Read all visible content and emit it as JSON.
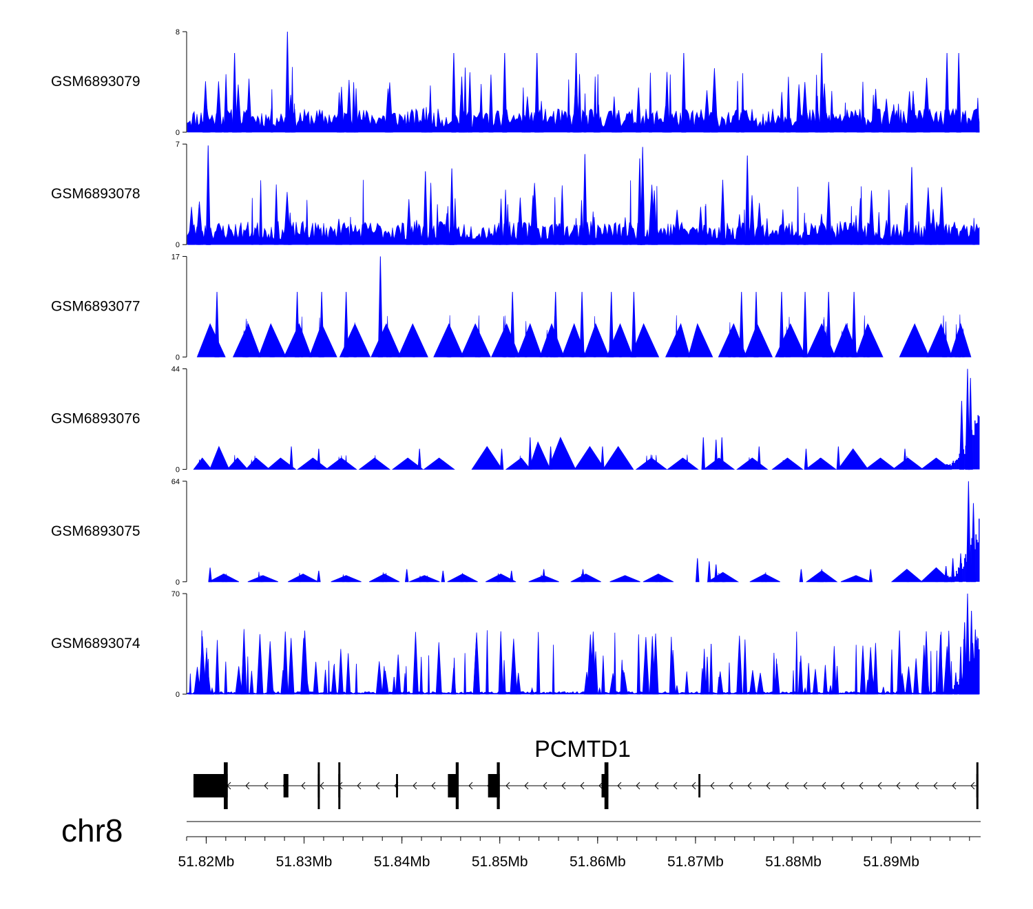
{
  "chart_data": {
    "type": "area",
    "chromosome": "chr8",
    "region_mb": [
      51.818,
      51.899
    ],
    "color": "#0000ff",
    "tracks": [
      {
        "name": "GSM6893079",
        "ymax": "8",
        "ymin": "0",
        "max_value": 8,
        "baseline": 1.5,
        "peak_count": 70,
        "dense": true,
        "seed": 11,
        "peaks": [
          [
            51.8229,
            6.3
          ],
          [
            51.8283,
            8.0
          ],
          [
            51.8453,
            6.3
          ],
          [
            51.8505,
            6.3
          ],
          [
            51.8538,
            6.3
          ],
          [
            51.8578,
            6.3
          ],
          [
            51.8688,
            6.3
          ],
          [
            51.8829,
            6.3
          ],
          [
            51.8957,
            6.3
          ],
          [
            51.8969,
            6.3
          ]
        ]
      },
      {
        "name": "GSM6893078",
        "ymax": "7",
        "ymin": "0",
        "max_value": 7,
        "baseline": 1.3,
        "peak_count": 75,
        "dense": true,
        "seed": 23,
        "peaks": [
          [
            51.8202,
            6.9
          ],
          [
            51.8424,
            5.1
          ],
          [
            51.8451,
            5.3
          ],
          [
            51.8587,
            6.3
          ],
          [
            51.8643,
            6.0
          ],
          [
            51.8646,
            6.8
          ],
          [
            51.8753,
            6.2
          ],
          [
            51.8921,
            5.4
          ]
        ]
      },
      {
        "name": "GSM6893077",
        "ymax": "17",
        "ymin": "0",
        "max_value": 17,
        "baseline": 0,
        "peak_count": 0,
        "dense": false,
        "seed": 37,
        "triangles": [
          [
            51.8204,
            5.6
          ],
          [
            51.8243,
            5.6
          ],
          [
            51.8266,
            5.6
          ],
          [
            51.8295,
            5.6
          ],
          [
            51.8318,
            5.6
          ],
          [
            51.8352,
            5.6
          ],
          [
            51.8384,
            5.6
          ],
          [
            51.8411,
            5.6
          ],
          [
            51.8448,
            5.6
          ],
          [
            51.8475,
            5.6
          ],
          [
            51.8507,
            5.6
          ],
          [
            51.8531,
            5.6
          ],
          [
            51.8553,
            5.6
          ],
          [
            51.8576,
            5.6
          ],
          [
            51.8598,
            5.6
          ],
          [
            51.8623,
            5.6
          ],
          [
            51.8647,
            5.6
          ],
          [
            51.8685,
            5.6
          ],
          [
            51.8702,
            5.6
          ],
          [
            51.8739,
            5.6
          ],
          [
            51.8763,
            5.6
          ],
          [
            51.8797,
            5.6
          ],
          [
            51.8829,
            5.6
          ],
          [
            51.8854,
            5.6
          ],
          [
            51.8876,
            5.6
          ],
          [
            51.8924,
            5.6
          ],
          [
            51.8951,
            5.6
          ],
          [
            51.8971,
            5.6
          ]
        ],
        "peaks": [
          [
            51.8211,
            11.0
          ],
          [
            51.8293,
            11.0
          ],
          [
            51.8318,
            11.0
          ],
          [
            51.8343,
            11.0
          ],
          [
            51.8378,
            17.0
          ],
          [
            51.8513,
            11.0
          ],
          [
            51.8557,
            11.0
          ],
          [
            51.8584,
            11.0
          ],
          [
            51.8614,
            11.0
          ],
          [
            51.8637,
            11.0
          ],
          [
            51.8747,
            11.0
          ],
          [
            51.8762,
            11.0
          ],
          [
            51.8788,
            11.0
          ],
          [
            51.8812,
            11.0
          ],
          [
            51.8836,
            11.0
          ],
          [
            51.8862,
            11.0
          ]
        ]
      },
      {
        "name": "GSM6893076",
        "ymax": "44",
        "ymin": "0",
        "max_value": 44,
        "baseline": 0,
        "peak_count": 0,
        "dense": false,
        "seed": 41,
        "triangles": [
          [
            51.8196,
            5
          ],
          [
            51.8213,
            10
          ],
          [
            51.8232,
            5
          ],
          [
            51.8251,
            5
          ],
          [
            51.8276,
            5
          ],
          [
            51.8309,
            5
          ],
          [
            51.8338,
            5
          ],
          [
            51.8372,
            5
          ],
          [
            51.8406,
            5
          ],
          [
            51.8438,
            5
          ],
          [
            51.8487,
            10
          ],
          [
            51.8522,
            5
          ],
          [
            51.8539,
            12
          ],
          [
            51.8562,
            14
          ],
          [
            51.8592,
            10
          ],
          [
            51.8621,
            10
          ],
          [
            51.8655,
            5
          ],
          [
            51.8687,
            5
          ],
          [
            51.8724,
            5
          ],
          [
            51.8758,
            5
          ],
          [
            51.8794,
            5
          ],
          [
            51.8828,
            5
          ],
          [
            51.8861,
            9
          ],
          [
            51.8889,
            5
          ],
          [
            51.8917,
            5
          ],
          [
            51.8946,
            5
          ]
        ],
        "peaks": [
          [
            51.8287,
            10
          ],
          [
            51.8315,
            9
          ],
          [
            51.8418,
            9
          ],
          [
            51.8502,
            9
          ],
          [
            51.8531,
            14
          ],
          [
            51.8552,
            10
          ],
          [
            51.8605,
            10
          ],
          [
            51.8708,
            14
          ],
          [
            51.8721,
            13
          ],
          [
            51.8727,
            14
          ],
          [
            51.8765,
            10
          ],
          [
            51.8813,
            9
          ],
          [
            51.8846,
            10
          ],
          [
            51.8914,
            9
          ],
          [
            51.8978,
            44
          ],
          [
            51.8981,
            40
          ],
          [
            51.8972,
            30
          ]
        ]
      },
      {
        "name": "GSM6893075",
        "ymax": "64",
        "ymin": "0",
        "max_value": 64,
        "baseline": 0,
        "peak_count": 0,
        "dense": false,
        "seed": 53,
        "triangles": [
          [
            51.8218,
            5
          ],
          [
            51.8258,
            4
          ],
          [
            51.8299,
            5
          ],
          [
            51.8343,
            4
          ],
          [
            51.8382,
            5
          ],
          [
            51.8423,
            4
          ],
          [
            51.8462,
            5
          ],
          [
            51.8501,
            5
          ],
          [
            51.8545,
            4
          ],
          [
            51.8588,
            5
          ],
          [
            51.8628,
            4
          ],
          [
            51.8662,
            5
          ],
          [
            51.8728,
            6
          ],
          [
            51.8771,
            5
          ],
          [
            51.8829,
            7
          ],
          [
            51.8864,
            4
          ],
          [
            51.8916,
            8
          ],
          [
            51.8946,
            9
          ]
        ],
        "peaks": [
          [
            51.8204,
            9
          ],
          [
            51.8315,
            7
          ],
          [
            51.8405,
            8
          ],
          [
            51.8442,
            7
          ],
          [
            51.8512,
            7
          ],
          [
            51.8545,
            8
          ],
          [
            51.8585,
            8
          ],
          [
            51.8702,
            15
          ],
          [
            51.8714,
            13
          ],
          [
            51.8721,
            11
          ],
          [
            51.8808,
            8
          ],
          [
            51.8829,
            8
          ],
          [
            51.8879,
            8
          ],
          [
            51.8956,
            10
          ],
          [
            51.8971,
            18
          ],
          [
            51.8979,
            64
          ],
          [
            51.8984,
            50
          ],
          [
            51.8963,
            15
          ]
        ]
      },
      {
        "name": "GSM6893074",
        "ymax": "70",
        "ymin": "0",
        "max_value": 70,
        "baseline": 1.5,
        "peak_count": 120,
        "dense": true,
        "seed": 67,
        "peaks": [
          [
            51.8206,
            4
          ],
          [
            51.8268,
            4
          ],
          [
            51.8336,
            5
          ],
          [
            51.8392,
            12
          ],
          [
            51.8478,
            5
          ],
          [
            51.8533,
            4
          ],
          [
            51.8602,
            4
          ],
          [
            51.8681,
            6
          ],
          [
            51.8712,
            26
          ],
          [
            51.8707,
            18
          ],
          [
            51.8716,
            35
          ],
          [
            51.8724,
            12
          ],
          [
            51.8812,
            4
          ],
          [
            51.8838,
            6
          ],
          [
            51.8876,
            10
          ],
          [
            51.8892,
            5
          ],
          [
            51.8937,
            6
          ],
          [
            51.8966,
            15
          ],
          [
            51.8971,
            33
          ],
          [
            51.8975,
            50
          ],
          [
            51.8978,
            70
          ],
          [
            51.8982,
            58
          ],
          [
            51.8986,
            45
          ]
        ]
      }
    ],
    "gene": {
      "name": "PCMTD1",
      "strand": "-",
      "exons": [
        [
          51.8187,
          51.8219
        ],
        [
          51.8218,
          51.8222
        ],
        [
          51.8279,
          51.8283
        ],
        [
          51.8282,
          51.8284
        ],
        [
          51.8314,
          51.8316
        ],
        [
          51.8335,
          51.8337
        ],
        [
          51.8394,
          51.8396
        ],
        [
          51.8447,
          51.8457
        ],
        [
          51.8455,
          51.8458
        ],
        [
          51.8488,
          51.8498
        ],
        [
          51.8497,
          51.85
        ],
        [
          51.8604,
          51.861
        ],
        [
          51.8607,
          51.8611
        ],
        [
          51.8703,
          51.8705
        ],
        [
          51.8987,
          51.8989
        ]
      ],
      "tall_exons": [
        [
          51.8218,
          51.8222
        ],
        [
          51.8314,
          51.8316
        ],
        [
          51.8335,
          51.8337
        ],
        [
          51.8455,
          51.8458
        ],
        [
          51.8497,
          51.85
        ],
        [
          51.8607,
          51.8611
        ],
        [
          51.8987,
          51.8989
        ]
      ]
    },
    "x_ticks": [
      "51.82Mb",
      "51.83Mb",
      "51.84Mb",
      "51.85Mb",
      "51.86Mb",
      "51.87Mb",
      "51.88Mb",
      "51.89Mb"
    ],
    "x_tick_values": [
      51.82,
      51.83,
      51.84,
      51.85,
      51.86,
      51.87,
      51.88,
      51.89
    ],
    "minor_tick_step": 0.002
  }
}
